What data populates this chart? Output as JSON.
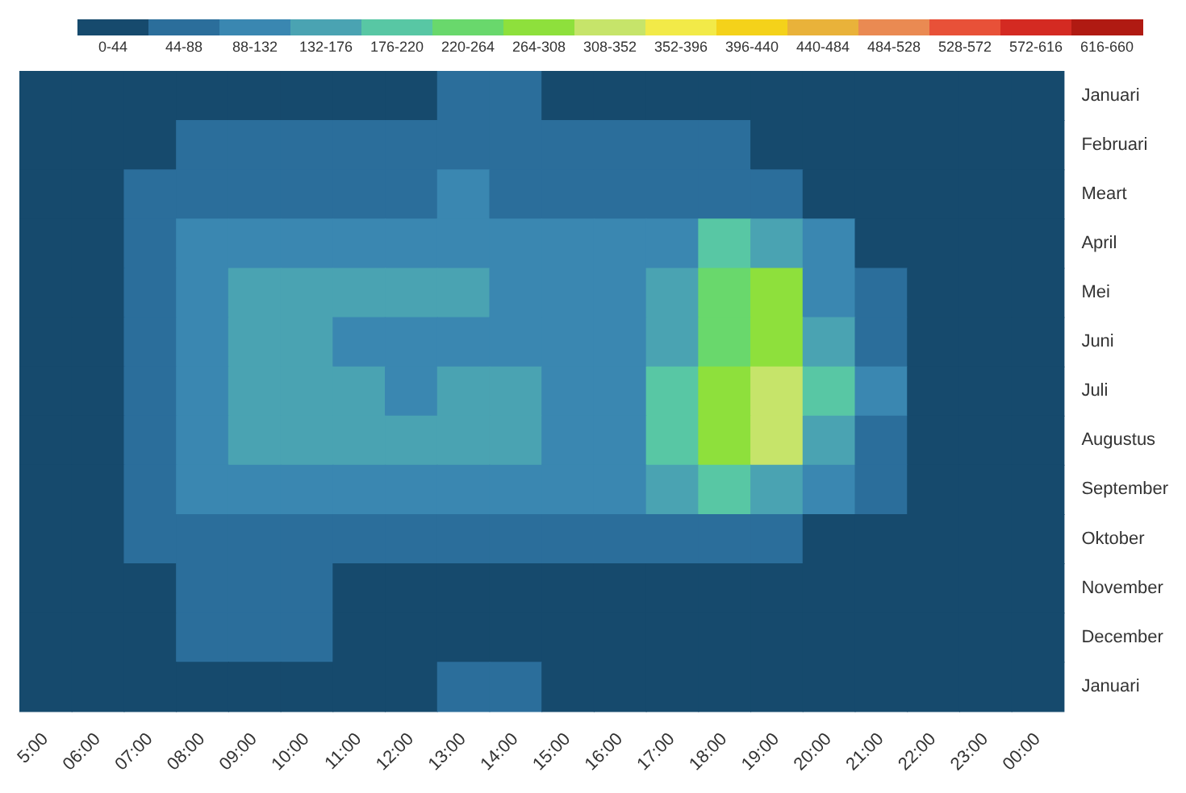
{
  "chart_data": {
    "type": "heatmap",
    "categories": [
      "5:00",
      "06:00",
      "07:00",
      "08:00",
      "09:00",
      "10:00",
      "11:00",
      "12:00",
      "13:00",
      "14:00",
      "15:00",
      "16:00",
      "17:00",
      "18:00",
      "19:00",
      "20:00",
      "21:00",
      "22:00",
      "23:00",
      "00:00"
    ],
    "y_categories": [
      "Januari",
      "Februari",
      "Meart",
      "April",
      "Mei",
      "Juni",
      "Juli",
      "Augustus",
      "September",
      "Oktober",
      "November",
      "December",
      "Januari"
    ],
    "cells": [
      [
        22,
        22,
        22,
        22,
        22,
        22,
        22,
        22,
        66,
        66,
        22,
        22,
        22,
        22,
        22,
        22,
        22,
        22,
        22,
        22
      ],
      [
        22,
        22,
        22,
        66,
        66,
        66,
        66,
        66,
        66,
        66,
        66,
        66,
        66,
        66,
        22,
        22,
        22,
        22,
        22,
        22
      ],
      [
        22,
        22,
        66,
        66,
        66,
        66,
        66,
        66,
        110,
        66,
        66,
        66,
        66,
        66,
        66,
        22,
        22,
        22,
        22,
        22
      ],
      [
        22,
        22,
        66,
        110,
        110,
        110,
        110,
        110,
        110,
        110,
        110,
        110,
        110,
        198,
        154,
        110,
        22,
        22,
        22,
        22
      ],
      [
        22,
        22,
        66,
        110,
        154,
        154,
        154,
        154,
        154,
        110,
        110,
        110,
        154,
        242,
        286,
        110,
        66,
        22,
        22,
        22
      ],
      [
        22,
        22,
        66,
        110,
        154,
        154,
        110,
        110,
        110,
        110,
        110,
        110,
        154,
        242,
        286,
        154,
        66,
        22,
        22,
        22
      ],
      [
        22,
        22,
        66,
        110,
        154,
        154,
        154,
        110,
        154,
        154,
        110,
        110,
        198,
        286,
        330,
        198,
        110,
        22,
        22,
        22
      ],
      [
        22,
        22,
        66,
        110,
        154,
        154,
        154,
        154,
        154,
        154,
        110,
        110,
        198,
        286,
        330,
        154,
        66,
        22,
        22,
        22
      ],
      [
        22,
        22,
        66,
        110,
        110,
        110,
        110,
        110,
        110,
        110,
        110,
        110,
        154,
        198,
        154,
        110,
        66,
        22,
        22,
        22
      ],
      [
        22,
        22,
        66,
        66,
        66,
        66,
        66,
        66,
        66,
        66,
        66,
        66,
        66,
        66,
        66,
        22,
        22,
        22,
        22,
        22
      ],
      [
        22,
        22,
        22,
        66,
        66,
        66,
        22,
        22,
        22,
        22,
        22,
        22,
        22,
        22,
        22,
        22,
        22,
        22,
        22,
        22
      ],
      [
        22,
        22,
        22,
        66,
        66,
        66,
        22,
        22,
        22,
        22,
        22,
        22,
        22,
        22,
        22,
        22,
        22,
        22,
        22,
        22
      ],
      [
        22,
        22,
        22,
        22,
        22,
        22,
        22,
        22,
        66,
        66,
        22,
        22,
        22,
        22,
        22,
        22,
        22,
        22,
        22,
        22
      ]
    ],
    "clim": [
      0,
      660
    ],
    "cticks": [
      {
        "value": 22,
        "label": "0-44"
      },
      {
        "value": 66,
        "label": "44-88"
      },
      {
        "value": 110,
        "label": "88-132"
      },
      {
        "value": 154,
        "label": "132-176"
      },
      {
        "value": 198,
        "label": "176-220"
      },
      {
        "value": 242,
        "label": "220-264"
      },
      {
        "value": 286,
        "label": "264-308"
      },
      {
        "value": 330,
        "label": "308-352"
      },
      {
        "value": 374,
        "label": "352-396"
      },
      {
        "value": 418,
        "label": "396-440"
      },
      {
        "value": 462,
        "label": "440-484"
      },
      {
        "value": 506,
        "label": "484-528"
      },
      {
        "value": 550,
        "label": "528-572"
      },
      {
        "value": 594,
        "label": "572-616"
      },
      {
        "value": 638,
        "label": "616-660"
      }
    ]
  }
}
